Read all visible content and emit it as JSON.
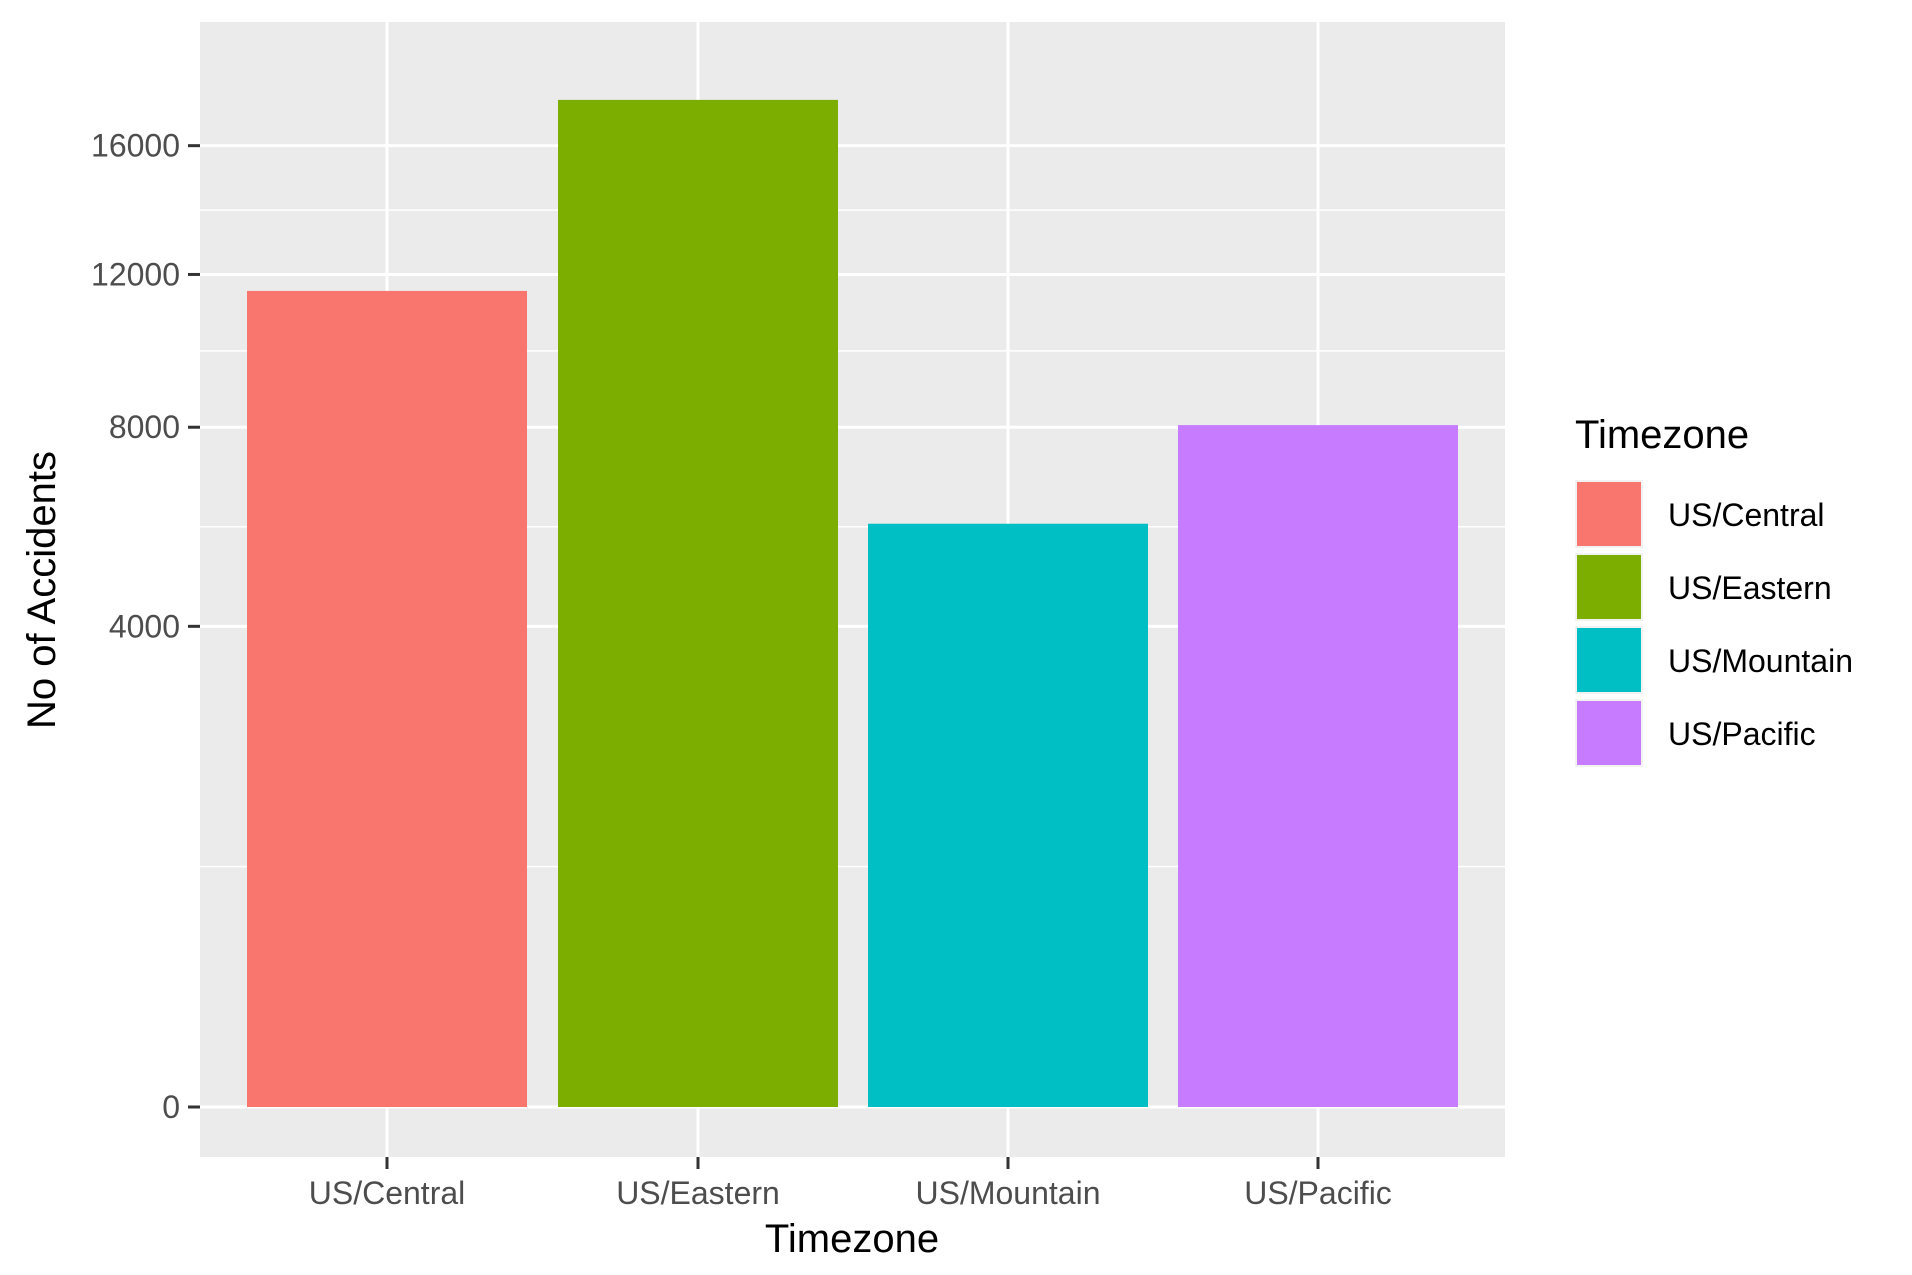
{
  "chart_data": {
    "type": "bar",
    "categories": [
      "US/Central",
      "US/Eastern",
      "US/Mountain",
      "US/Pacific"
    ],
    "values": [
      11530,
      17560,
      5890,
      8050
    ],
    "colors": [
      "#F8766D",
      "#7CAE00",
      "#00BFC4",
      "#C77CFF"
    ],
    "xlabel": "Timezone",
    "ylabel": "No of Accidents",
    "y_scale": "sqrt",
    "yticks": [
      0,
      4000,
      8000,
      12000,
      16000
    ],
    "ytick_labels": [
      "0",
      "4000",
      "8000",
      "12000",
      "16000"
    ],
    "ylim": [
      0,
      18500
    ],
    "grid": true,
    "legend": {
      "title": "Timezone",
      "position": "right",
      "entries": [
        "US/Central",
        "US/Eastern",
        "US/Mountain",
        "US/Pacific"
      ]
    },
    "panel_background": "#EBEBEB",
    "grid_color": "#FFFFFF"
  }
}
